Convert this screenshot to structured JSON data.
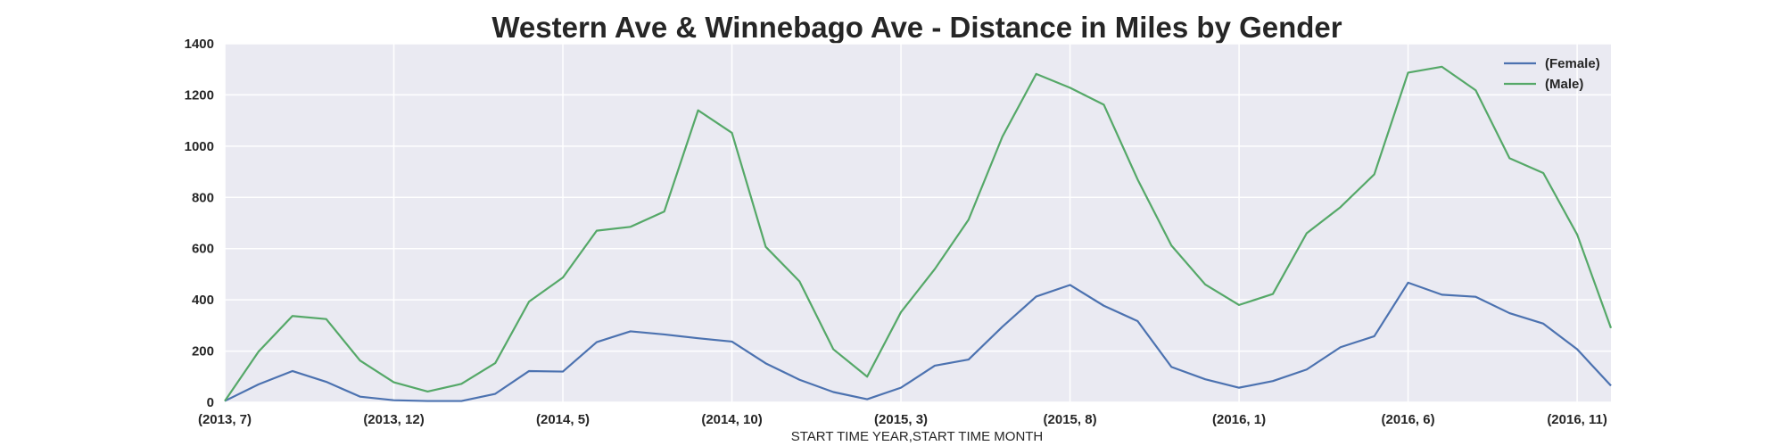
{
  "chart_data": {
    "type": "line",
    "title": "Western Ave & Winnebago Ave - Distance in Miles by Gender",
    "xlabel": "START TIME YEAR,START TIME MONTH",
    "ylabel": "",
    "ylim": [
      0,
      1400
    ],
    "yticks": [
      0,
      200,
      400,
      600,
      800,
      1000,
      1200,
      1400
    ],
    "x": [
      "(2013, 7)",
      "(2013, 8)",
      "(2013, 9)",
      "(2013, 10)",
      "(2013, 11)",
      "(2013, 12)",
      "(2014, 1)",
      "(2014, 2)",
      "(2014, 3)",
      "(2014, 4)",
      "(2014, 5)",
      "(2014, 6)",
      "(2014, 7)",
      "(2014, 8)",
      "(2014, 9)",
      "(2014, 10)",
      "(2014, 11)",
      "(2014, 12)",
      "(2015, 1)",
      "(2015, 2)",
      "(2015, 3)",
      "(2015, 4)",
      "(2015, 5)",
      "(2015, 6)",
      "(2015, 7)",
      "(2015, 8)",
      "(2015, 9)",
      "(2015, 10)",
      "(2015, 11)",
      "(2015, 12)",
      "(2016, 1)",
      "(2016, 2)",
      "(2016, 3)",
      "(2016, 4)",
      "(2016, 5)",
      "(2016, 6)",
      "(2016, 7)",
      "(2016, 8)",
      "(2016, 9)",
      "(2016, 10)",
      "(2016, 11)",
      "(2016, 12)"
    ],
    "xtick_labels": [
      "(2013, 7)",
      "(2013, 12)",
      "(2014, 5)",
      "(2014, 10)",
      "(2015, 3)",
      "(2015, 8)",
      "(2016, 1)",
      "(2016, 6)",
      "(2016, 11)"
    ],
    "xtick_indices": [
      0,
      5,
      10,
      15,
      20,
      25,
      30,
      35,
      40
    ],
    "series": [
      {
        "name": "(Female)",
        "color": "#4c72b0",
        "values": [
          5,
          70,
          122,
          80,
          22,
          8,
          5,
          5,
          33,
          122,
          120,
          235,
          277,
          265,
          250,
          237,
          152,
          88,
          40,
          12,
          57,
          143,
          167,
          295,
          413,
          458,
          377,
          317,
          138,
          90,
          57,
          83,
          128,
          215,
          258,
          467,
          420,
          412,
          348,
          307,
          207,
          65
        ]
      },
      {
        "name": "(Male)",
        "color": "#55a868",
        "values": [
          5,
          198,
          337,
          325,
          163,
          78,
          42,
          72,
          153,
          393,
          487,
          670,
          685,
          745,
          1140,
          1052,
          607,
          472,
          207,
          100,
          352,
          520,
          713,
          1037,
          1282,
          1228,
          1162,
          870,
          612,
          460,
          380,
          423,
          660,
          762,
          890,
          1287,
          1310,
          1218,
          953,
          895,
          655,
          290
        ]
      }
    ],
    "legend_position": "top-right",
    "grid": true
  }
}
